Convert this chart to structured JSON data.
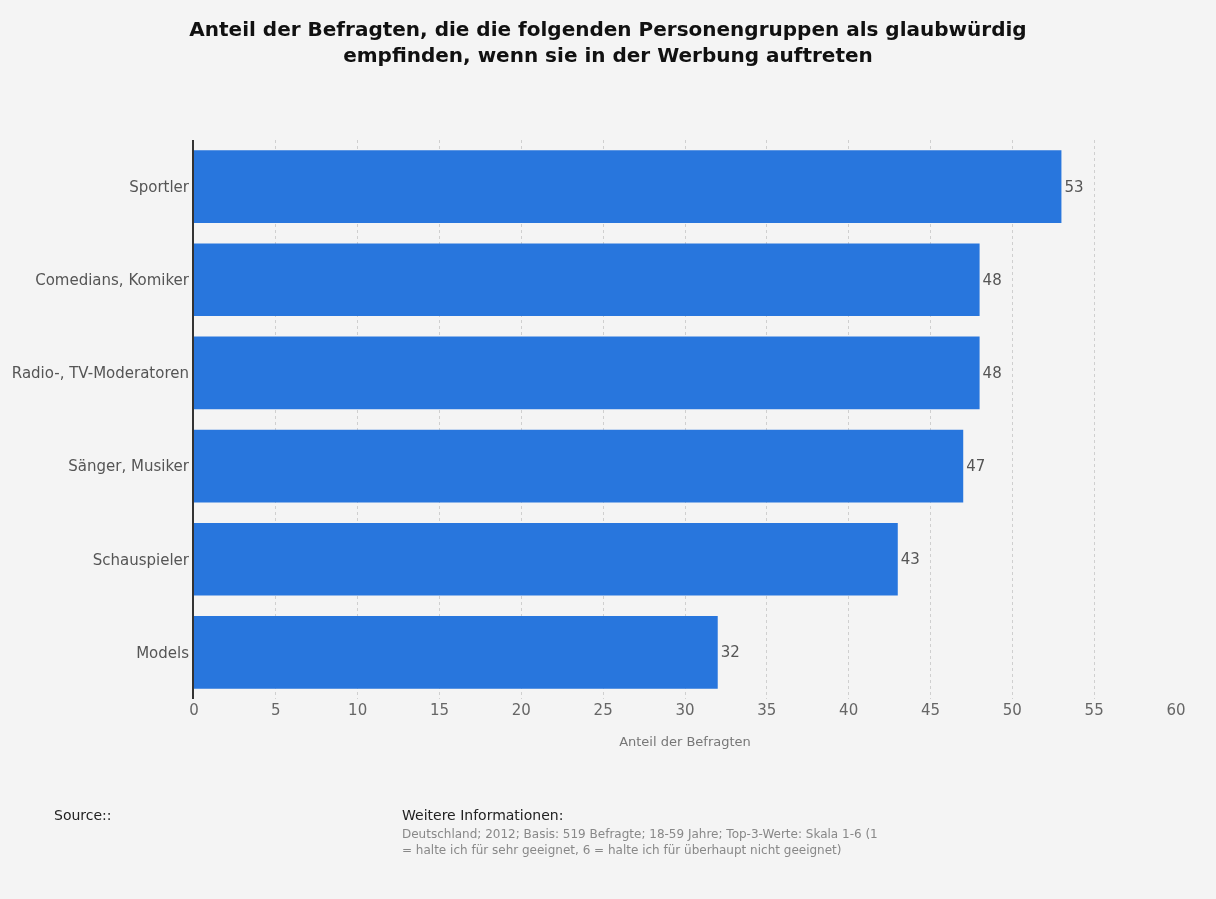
{
  "chart_data": {
    "type": "bar",
    "orientation": "horizontal",
    "title": "Anteil der Befragten, die die folgenden Personengruppen als glaubwürdig empfinden, wenn sie in der Werbung auftreten",
    "categories": [
      "Sportler",
      "Comedians, Komiker",
      "Radio-, TV-Moderatoren",
      "Sänger, Musiker",
      "Schauspieler",
      "Models"
    ],
    "values": [
      53,
      48,
      48,
      47,
      43,
      32
    ],
    "color": "#2876dd",
    "xlim": [
      0,
      60
    ],
    "xticks": [
      0,
      5,
      10,
      15,
      20,
      25,
      30,
      35,
      40,
      45,
      50,
      55,
      60
    ],
    "xlabel": "Anteil der Befragten",
    "data_labels": true,
    "grid": "x",
    "annotations": [
      "Source::",
      "Weitere Informationen:",
      "Deutschland; 2012; Basis: 519 Befragte; 18-59 Jahre; Top-3-Werte: Skala 1-6 (1 = halte ich für sehr geeignet, 6 = halte ich für überhaupt nicht geeignet)"
    ]
  }
}
